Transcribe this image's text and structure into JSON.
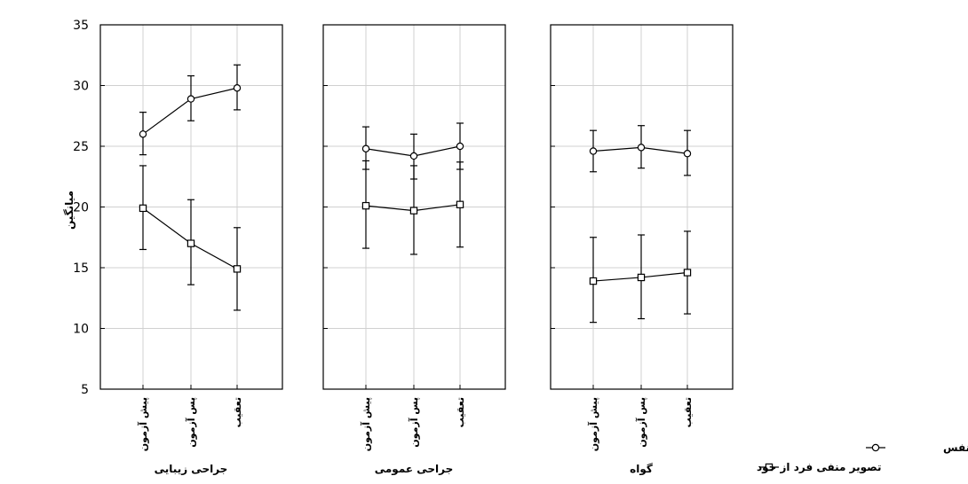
{
  "chart_data": {
    "type": "line",
    "y_axis": {
      "label": "میانگین",
      "lim": [
        5,
        35
      ],
      "ticks": [
        5,
        10,
        15,
        20,
        25,
        30,
        35
      ]
    },
    "grid": true,
    "legend_position": "bottom-right",
    "categories": [
      "پیش آزمون",
      "پس آزمون",
      "تعقیب"
    ],
    "series_styles": [
      {
        "name": "عزت نفس",
        "marker": "circle",
        "color": "#000000"
      },
      {
        "name": "تصویر منفی فرد از خود",
        "marker": "square",
        "color": "#000000"
      }
    ],
    "panels": [
      {
        "group": "جراحی زیبایی",
        "series": [
          {
            "name": "عزت نفس",
            "values": [
              26.0,
              28.9,
              29.8
            ],
            "err_low": [
              24.3,
              27.1,
              28.0
            ],
            "err_high": [
              27.8,
              30.8,
              31.7
            ]
          },
          {
            "name": "تصویر منفی فرد از خود",
            "values": [
              19.9,
              17.0,
              14.9
            ],
            "err_low": [
              16.5,
              13.6,
              11.5
            ],
            "err_high": [
              23.4,
              20.6,
              18.3
            ]
          }
        ]
      },
      {
        "group": "جراحی عمومی",
        "series": [
          {
            "name": "عزت نفس",
            "values": [
              24.8,
              24.2,
              25.0
            ],
            "err_low": [
              23.1,
              22.3,
              23.1
            ],
            "err_high": [
              26.6,
              26.0,
              26.9
            ]
          },
          {
            "name": "تصویر منفی فرد از خود",
            "values": [
              20.1,
              19.7,
              20.2
            ],
            "err_low": [
              16.6,
              16.1,
              16.7
            ],
            "err_high": [
              23.8,
              23.4,
              23.7
            ]
          }
        ]
      },
      {
        "group": "گواه",
        "series": [
          {
            "name": "عزت نفس",
            "values": [
              24.6,
              24.9,
              24.4
            ],
            "err_low": [
              22.9,
              23.2,
              22.6
            ],
            "err_high": [
              26.3,
              26.7,
              26.3
            ]
          },
          {
            "name": "تصویر منفی فرد از خود",
            "values": [
              13.9,
              14.2,
              14.6
            ],
            "err_low": [
              10.5,
              10.8,
              11.2
            ],
            "err_high": [
              17.5,
              17.7,
              18.0
            ]
          }
        ]
      }
    ]
  }
}
